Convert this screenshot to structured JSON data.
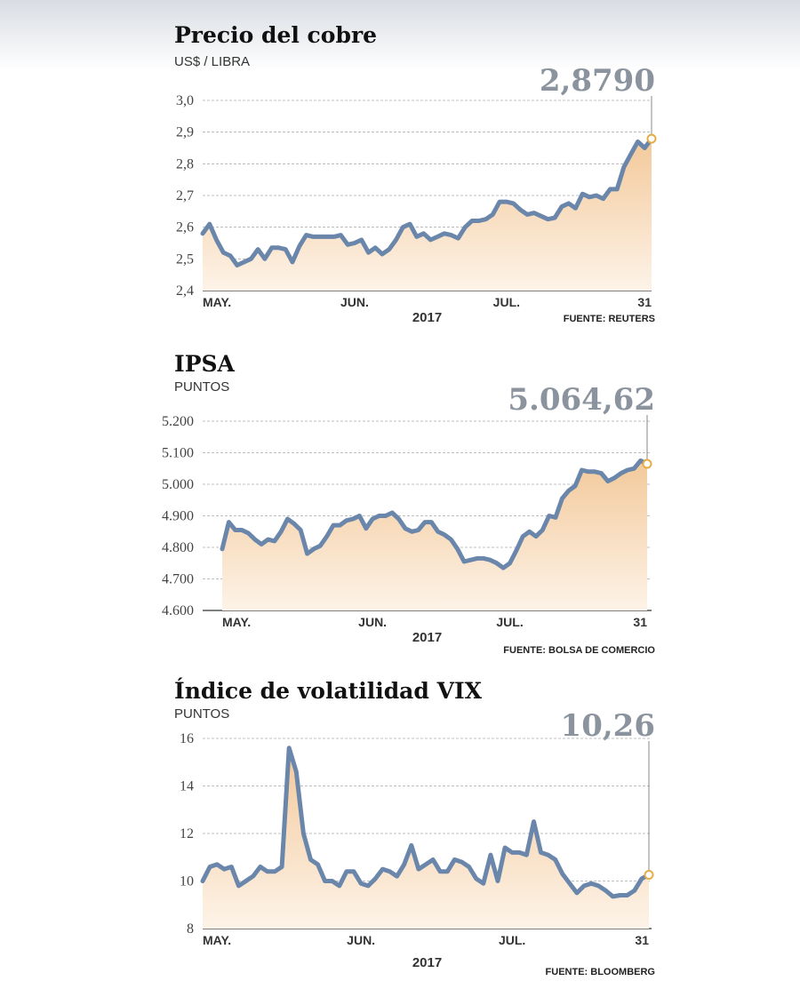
{
  "chart_data": [
    {
      "type": "line",
      "title": "Precio del cobre",
      "subtitle": "US$ / LIBRA",
      "annotation": "2,8790",
      "xlabel": "2017",
      "source": "FUENTE: REUTERS",
      "categories": [
        "MAY.",
        null,
        null,
        null,
        null,
        null,
        null,
        null,
        null,
        null,
        null,
        null,
        null,
        null,
        null,
        null,
        null,
        null,
        null,
        null,
        null,
        null,
        "JUN.",
        null,
        null,
        null,
        null,
        null,
        null,
        null,
        null,
        null,
        null,
        null,
        null,
        null,
        null,
        null,
        null,
        null,
        null,
        null,
        null,
        null,
        "JUL.",
        null,
        null,
        null,
        null,
        null,
        null,
        null,
        null,
        null,
        null,
        null,
        null,
        null,
        null,
        null,
        null,
        null,
        null,
        null,
        null,
        "31"
      ],
      "series": [
        {
          "color": "#6b86ab",
          "values": [
            2.58,
            2.61,
            2.56,
            2.52,
            2.51,
            2.48,
            2.49,
            2.5,
            2.53,
            2.5,
            2.535,
            2.535,
            2.53,
            2.49,
            2.54,
            2.575,
            2.57,
            2.57,
            2.57,
            2.57,
            2.575,
            2.545,
            2.55,
            2.56,
            2.52,
            2.535,
            2.515,
            2.53,
            2.56,
            2.6,
            2.61,
            2.57,
            2.58,
            2.56,
            2.57,
            2.58,
            2.575,
            2.565,
            2.6,
            2.62,
            2.62,
            2.625,
            2.64,
            2.68,
            2.68,
            2.675,
            2.655,
            2.64,
            2.645,
            2.635,
            2.625,
            2.63,
            2.665,
            2.675,
            2.66,
            2.705,
            2.695,
            2.7,
            2.69,
            2.72,
            2.72,
            2.79,
            2.83,
            2.87,
            2.85,
            2.879
          ]
        }
      ],
      "ylim": [
        2.4,
        3.0
      ],
      "yticks": [
        {
          "value": 2.4,
          "label": "2,4"
        },
        {
          "value": 2.5,
          "label": "2,5"
        },
        {
          "value": 2.6,
          "label": "2,6"
        },
        {
          "value": 2.7,
          "label": "2,7"
        },
        {
          "value": 2.8,
          "label": "2,8"
        },
        {
          "value": 2.9,
          "label": "2,9"
        },
        {
          "value": 3.0,
          "label": "3,0"
        }
      ],
      "grid": true
    },
    {
      "type": "line",
      "title": "IPSA",
      "subtitle": "PUNTOS",
      "annotation": "5.064,62",
      "xlabel": "2017",
      "source": "FUENTE: BOLSA DE COMERCIO",
      "categories": [
        "MAY.",
        null,
        null,
        null,
        null,
        null,
        null,
        null,
        null,
        null,
        null,
        null,
        null,
        null,
        null,
        null,
        null,
        null,
        null,
        null,
        null,
        null,
        null,
        "JUN.",
        null,
        null,
        null,
        null,
        null,
        null,
        null,
        null,
        null,
        null,
        null,
        null,
        null,
        null,
        null,
        null,
        null,
        null,
        null,
        null,
        "JUL.",
        null,
        null,
        null,
        null,
        null,
        null,
        null,
        null,
        null,
        null,
        null,
        null,
        null,
        null,
        null,
        null,
        null,
        null,
        null,
        null,
        "31"
      ],
      "series": [
        {
          "color": "#6b86ab",
          "values": [
            4795,
            4880,
            4855,
            4855,
            4845,
            4825,
            4810,
            4825,
            4820,
            4850,
            4890,
            4875,
            4855,
            4780,
            4795,
            4805,
            4835,
            4870,
            4870,
            4885,
            4890,
            4900,
            4860,
            4890,
            4900,
            4900,
            4910,
            4890,
            4860,
            4850,
            4855,
            4880,
            4880,
            4850,
            4840,
            4825,
            4795,
            4755,
            4760,
            4765,
            4765,
            4760,
            4750,
            4735,
            4750,
            4790,
            4835,
            4850,
            4835,
            4855,
            4900,
            4895,
            4955,
            4980,
            4995,
            5045,
            5040,
            5040,
            5035,
            5010,
            5020,
            5035,
            5045,
            5050,
            5075,
            5064.62
          ]
        }
      ],
      "ylim": [
        4600,
        5200
      ],
      "yticks": [
        {
          "value": 4600,
          "label": "4.600"
        },
        {
          "value": 4700,
          "label": "4.700"
        },
        {
          "value": 4800,
          "label": "4.800"
        },
        {
          "value": 4900,
          "label": "4.900"
        },
        {
          "value": 5000,
          "label": "5.000"
        },
        {
          "value": 5100,
          "label": "5.100"
        },
        {
          "value": 5200,
          "label": "5.200"
        }
      ],
      "grid": true
    },
    {
      "type": "line",
      "title": "Índice de volatilidad VIX",
      "subtitle": "PUNTOS",
      "annotation": "10,26",
      "xlabel": "2017",
      "source": "FUENTE: BLOOMBERG",
      "categories": [
        "MAY.",
        null,
        null,
        null,
        null,
        null,
        null,
        null,
        null,
        null,
        null,
        null,
        null,
        null,
        null,
        null,
        null,
        null,
        null,
        null,
        null,
        null,
        "JUN.",
        null,
        null,
        null,
        null,
        null,
        null,
        null,
        null,
        null,
        null,
        null,
        null,
        null,
        null,
        null,
        null,
        null,
        null,
        null,
        null,
        "JUL.",
        null,
        null,
        null,
        null,
        null,
        null,
        null,
        null,
        null,
        null,
        null,
        null,
        null,
        null,
        null,
        null,
        null,
        null,
        "31"
      ],
      "series": [
        {
          "color": "#6b86ab",
          "values": [
            10.0,
            10.6,
            10.7,
            10.5,
            10.6,
            9.8,
            10.0,
            10.2,
            10.6,
            10.4,
            10.4,
            10.6,
            15.6,
            14.6,
            12.0,
            10.9,
            10.7,
            10.0,
            10.0,
            9.8,
            10.4,
            10.4,
            9.9,
            9.8,
            10.1,
            10.5,
            10.4,
            10.2,
            10.7,
            11.5,
            10.5,
            10.7,
            10.9,
            10.4,
            10.4,
            10.9,
            10.8,
            10.6,
            10.1,
            9.9,
            11.1,
            10.0,
            11.4,
            11.2,
            11.2,
            11.1,
            12.5,
            11.2,
            11.1,
            10.9,
            10.3,
            9.9,
            9.5,
            9.8,
            9.9,
            9.8,
            9.6,
            9.35,
            9.4,
            9.4,
            9.6,
            10.1,
            10.26
          ]
        }
      ],
      "ylim": [
        8,
        16
      ],
      "yticks": [
        8,
        10,
        12,
        14,
        16
      ],
      "grid": true
    }
  ]
}
